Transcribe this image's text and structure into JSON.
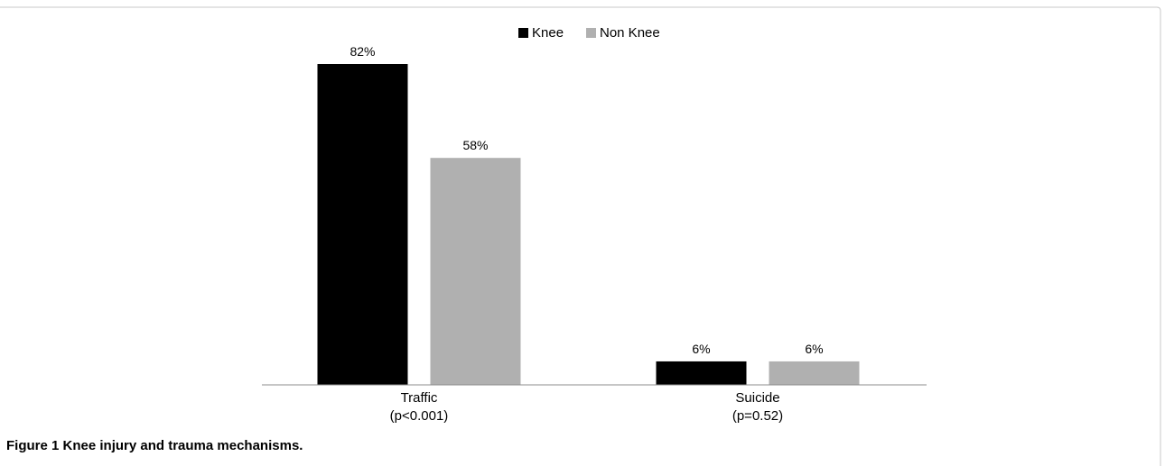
{
  "caption": {
    "label": "Figure 1",
    "text": "Knee injury and trauma mechanisms."
  },
  "colors": {
    "knee": "#000000",
    "non_knee": "#b0b0b0",
    "axis": "#8c8c8c",
    "frame": "#c8c8c8"
  },
  "chart_data": {
    "type": "bar",
    "title": "",
    "xlabel": "",
    "ylabel": "",
    "ylim": [
      0,
      90
    ],
    "grid": false,
    "legend_position": "top-center",
    "categories": [
      [
        "Traffic",
        "(p<0.001)"
      ],
      [
        "Suicide",
        "(p=0.52)"
      ]
    ],
    "series": [
      {
        "name": "Knee",
        "color": "#000000",
        "values": [
          82,
          6
        ],
        "labels": [
          "82%",
          "6%"
        ]
      },
      {
        "name": "Non Knee",
        "color": "#b0b0b0",
        "values": [
          58,
          6
        ],
        "labels": [
          "58%",
          "6%"
        ]
      }
    ]
  }
}
